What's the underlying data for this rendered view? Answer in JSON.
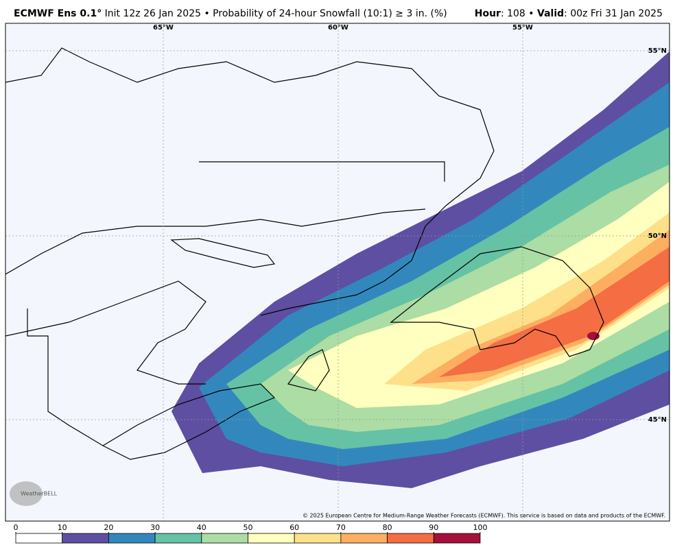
{
  "header": {
    "model": "ECMWF Ens 0.1°",
    "init": "Init 12z 26 Jan 2025 • Probability of 24-hour Snowfall (10:1) ≥ 3 in. (%)",
    "hour_label": "Hour",
    "hour_value": ": 108 •",
    "valid_label": "Valid",
    "valid_value": ": 00z Fri 31 Jan 2025"
  },
  "map": {
    "lon_labels": [
      "65°W",
      "60°W",
      "55°W"
    ],
    "lat_labels": [
      "55°N",
      "50°N",
      "45°N"
    ],
    "copyright": "© 2025 European Centre for Medium-Range Weather Forecasts (ECMWF). This service is based on data and products of the ECMWF.",
    "logo": "WeatherBELL"
  },
  "colorbar": {
    "ticks": [
      0,
      10,
      20,
      30,
      40,
      50,
      60,
      70,
      80,
      90,
      100
    ],
    "colors": [
      "#ffffff",
      "#5e4fa2",
      "#3288bd",
      "#66c2a5",
      "#abdda4",
      "#ffffbf",
      "#fee08b",
      "#fdae61",
      "#f46d43",
      "#a50f3a"
    ]
  }
}
